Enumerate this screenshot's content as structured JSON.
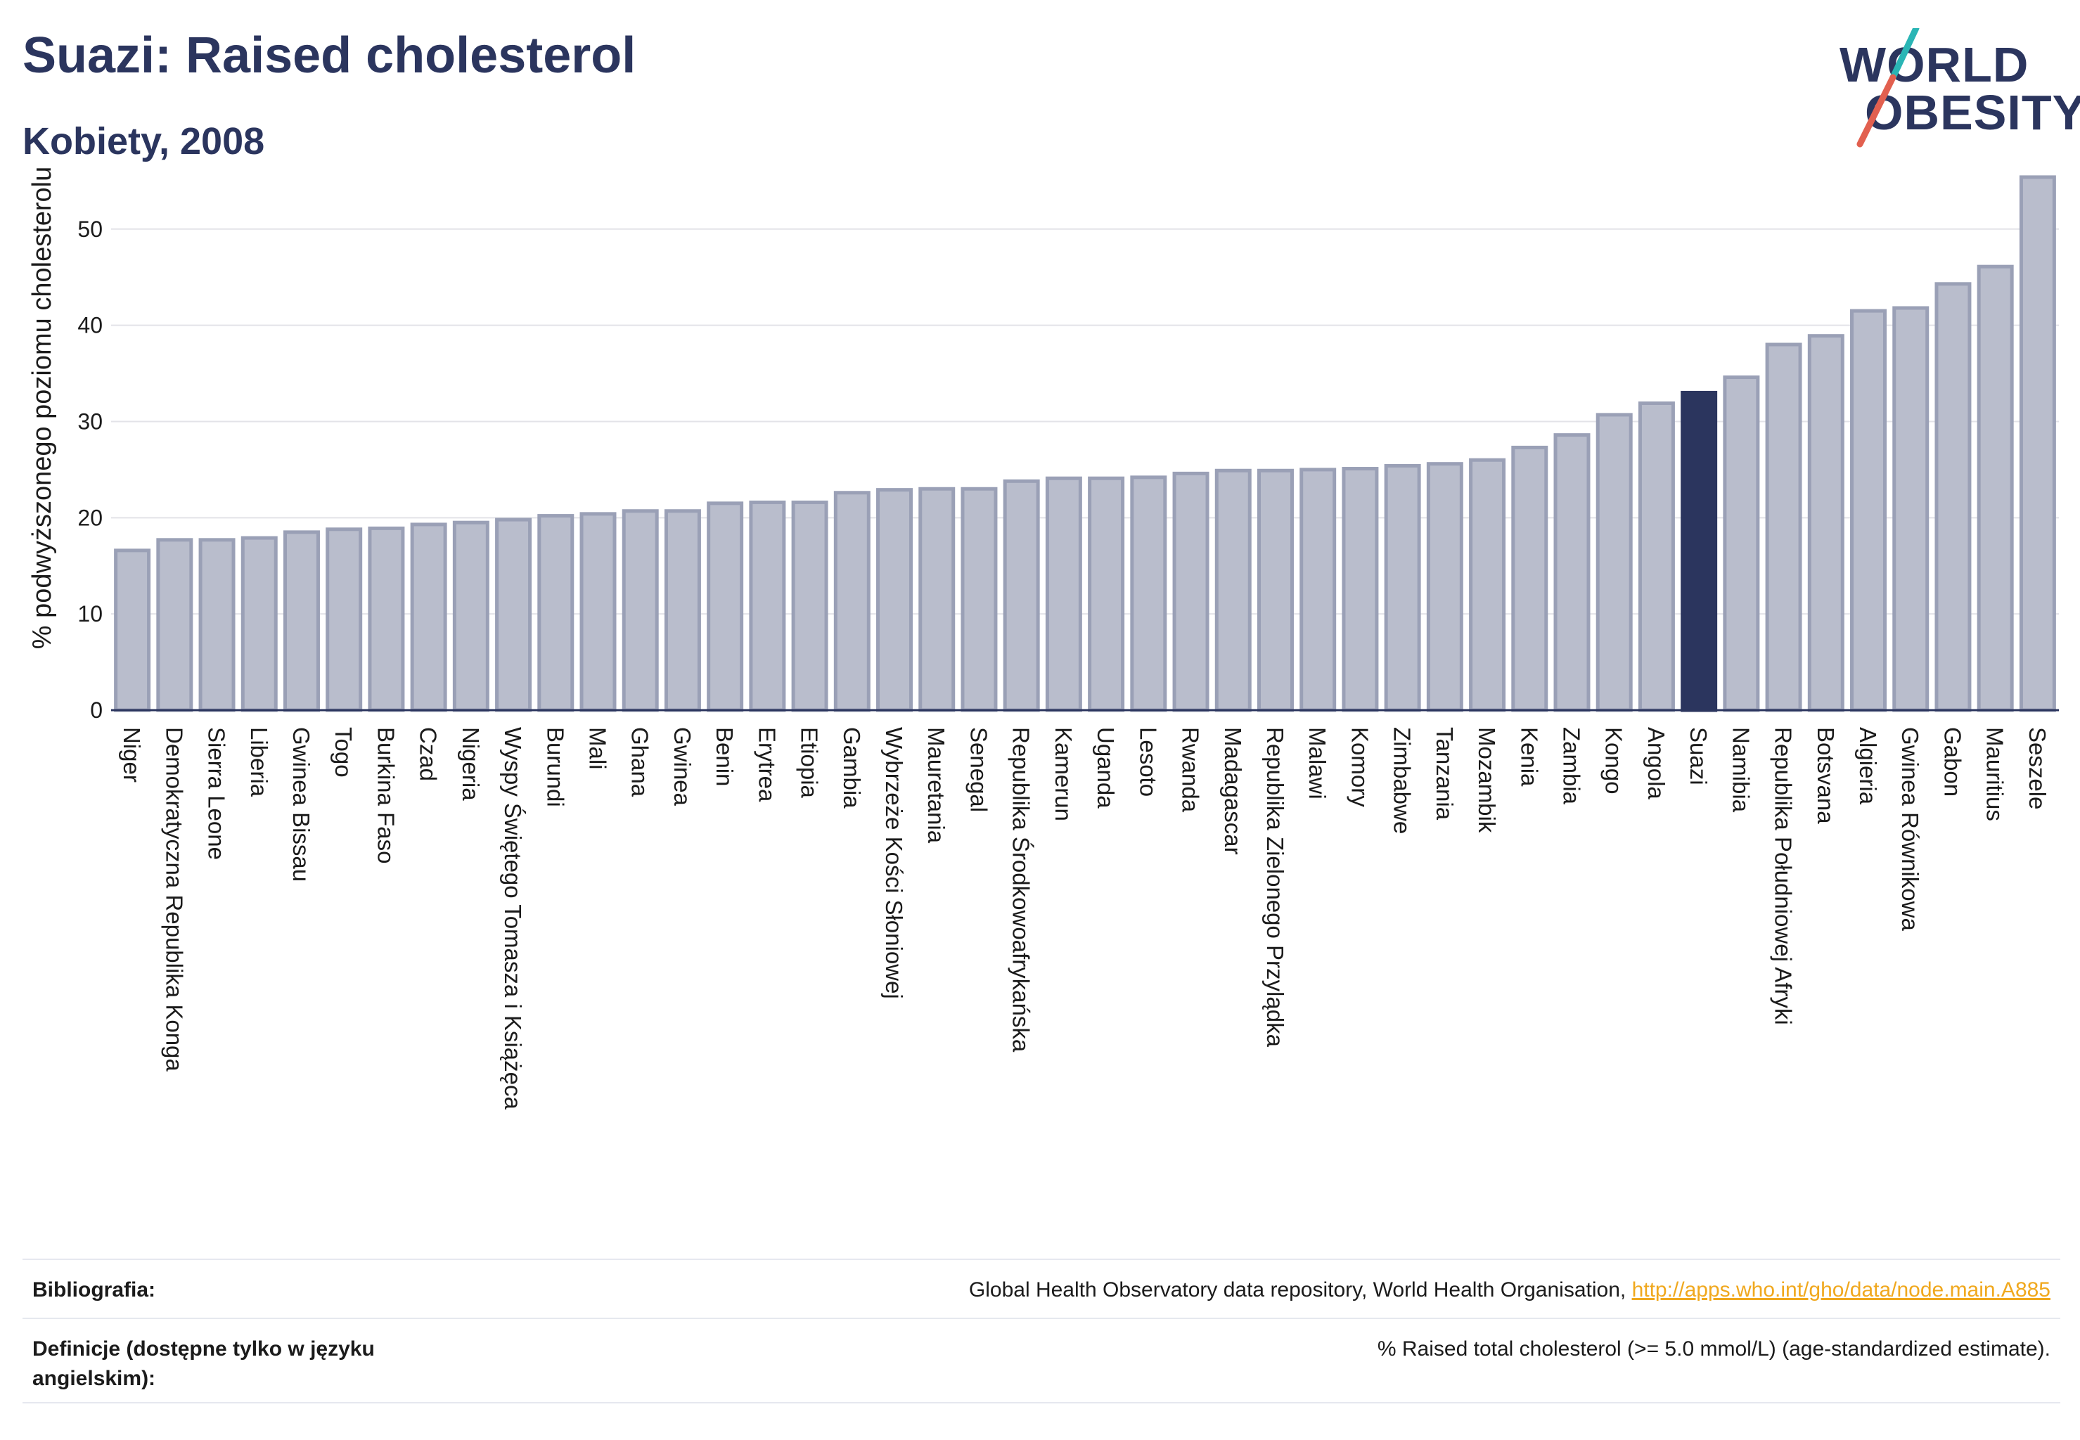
{
  "header": {
    "title": "Suazi: Raised cholesterol",
    "subtitle": "Kobiety, 2008",
    "logo_line1": "WORLD",
    "logo_line2": "OBESITY"
  },
  "colors": {
    "title": "#2b355e",
    "bar_default": "#b9bdcc",
    "bar_border": "#9aa0b6",
    "bar_highlight": "#2b355e",
    "grid": "#e3e3e8",
    "link": "#f0a81e",
    "logo_slash_teal": "#2ab5b5",
    "logo_slash_red": "#e2604f"
  },
  "chart_data": {
    "type": "bar",
    "ylabel": "% podwyższonego poziomu cholesterolu",
    "xlabel": "",
    "ylim": [
      0,
      57
    ],
    "yticks": [
      0,
      10,
      20,
      30,
      40,
      50
    ],
    "grid": true,
    "highlight": "Suazi",
    "categories": [
      "Niger",
      "Demokratyczna Republika Konga",
      "Sierra Leone",
      "Liberia",
      "Gwinea Bissau",
      "Togo",
      "Burkina Faso",
      "Czad",
      "Nigeria",
      "Wyspy Świętego Tomasza i Książęca",
      "Burundi",
      "Mali",
      "Ghana",
      "Gwinea",
      "Benin",
      "Erytrea",
      "Etiopia",
      "Gambia",
      "Wybrzeże Kości Słoniowej",
      "Mauretania",
      "Senegal",
      "Republika Środkowoafrykańska",
      "Kamerun",
      "Uganda",
      "Lesoto",
      "Rwanda",
      "Madagascar",
      "Republika Zielonego Przylądka",
      "Malawi",
      "Komory",
      "Zimbabwe",
      "Tanzania",
      "Mozambik",
      "Kenia",
      "Zambia",
      "Kongo",
      "Angola",
      "Suazi",
      "Namibia",
      "Republika Południowej Afryki",
      "Botsvana",
      "Algieria",
      "Gwinea Równikowa",
      "Gabon",
      "Mauritius",
      "Seszele"
    ],
    "values": [
      16.6,
      17.7,
      17.7,
      17.9,
      18.5,
      18.8,
      18.9,
      19.3,
      19.5,
      19.8,
      20.2,
      20.4,
      20.7,
      20.7,
      21.5,
      21.6,
      21.6,
      22.6,
      22.9,
      23.0,
      23.0,
      23.8,
      24.1,
      24.1,
      24.2,
      24.6,
      24.9,
      24.9,
      25.0,
      25.1,
      25.4,
      25.6,
      26.0,
      27.3,
      28.6,
      30.7,
      31.9,
      33.0,
      34.6,
      38.0,
      38.9,
      41.5,
      41.8,
      44.3,
      46.1,
      55.4
    ]
  },
  "footer": {
    "bibliography_label": "Bibliografia:",
    "bibliography_text": "Global Health Observatory data repository, World Health Organisation, ",
    "bibliography_link": "http://apps.who.int/gho/data/node.main.A885",
    "definitions_label": "Definicje (dostępne tylko w języku angielskim):",
    "definitions_text": "% Raised total cholesterol (>= 5.0 mmol/L) (age-standardized estimate)."
  }
}
